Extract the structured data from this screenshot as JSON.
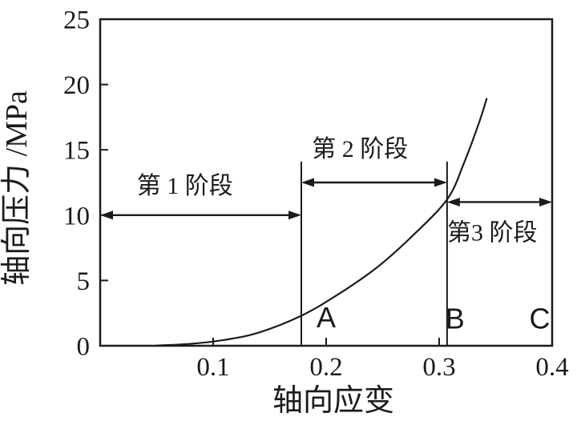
{
  "figure": {
    "background": "#ffffff",
    "ink_color": "#1b1b1b"
  },
  "chart_data": {
    "type": "line",
    "title": "",
    "xlabel": "轴向应变",
    "ylabel": "轴向压力 /MPa",
    "xlim": [
      0,
      0.4
    ],
    "ylim": [
      0,
      25
    ],
    "grid": false,
    "legend": "none",
    "x_ticks": [
      {
        "value": 0.1,
        "label": "0.1"
      },
      {
        "value": 0.2,
        "label": "0.2"
      },
      {
        "value": 0.3,
        "label": "0.3"
      },
      {
        "value": 0.4,
        "label": "0.4"
      }
    ],
    "y_ticks": [
      {
        "value": 0,
        "label": "0"
      },
      {
        "value": 5,
        "label": "5"
      },
      {
        "value": 10,
        "label": "10"
      },
      {
        "value": 15,
        "label": "15"
      },
      {
        "value": 20,
        "label": "20"
      },
      {
        "value": 25,
        "label": "25"
      }
    ],
    "series": [
      {
        "name": "axial-stress-strain-curve",
        "points": [
          [
            0.05,
            0.02
          ],
          [
            0.08,
            0.15
          ],
          [
            0.11,
            0.45
          ],
          [
            0.14,
            1.0
          ],
          [
            0.178,
            2.3
          ],
          [
            0.21,
            3.9
          ],
          [
            0.245,
            6.0
          ],
          [
            0.275,
            8.3
          ],
          [
            0.307,
            11.2
          ],
          [
            0.322,
            14.0
          ],
          [
            0.335,
            17.0
          ],
          [
            0.342,
            18.9
          ]
        ]
      }
    ],
    "vertical_lines": [
      {
        "x": 0.178,
        "y_top": 14.1
      },
      {
        "x": 0.307,
        "y_top": 14.1
      }
    ],
    "point_labels": [
      {
        "label": "A",
        "at": [
          0.2,
          2.2
        ]
      },
      {
        "label": "B",
        "at": [
          0.314,
          2.1
        ]
      },
      {
        "label": "C",
        "at": [
          0.389,
          2.1
        ]
      }
    ],
    "stages": [
      {
        "label": "第 1 阶段",
        "x_start": 0.0,
        "x_end": 0.178,
        "arrow_y": 10.0,
        "label_at": [
          0.075,
          12.3
        ]
      },
      {
        "label": "第 2 阶段",
        "x_start": 0.178,
        "x_end": 0.307,
        "arrow_y": 12.5,
        "label_at": [
          0.23,
          15.1
        ]
      },
      {
        "label": "第3 阶段",
        "x_start": 0.307,
        "x_end": 0.4,
        "arrow_y": 11.0,
        "label_at": [
          0.347,
          8.7
        ]
      }
    ]
  }
}
